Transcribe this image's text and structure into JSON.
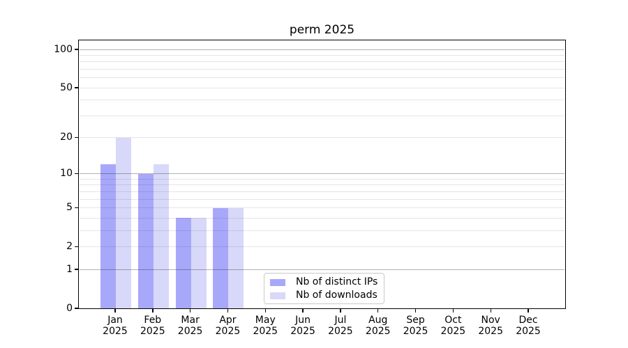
{
  "chart_data": {
    "type": "bar",
    "title": "perm 2025",
    "months": [
      "Jan",
      "Feb",
      "Mar",
      "Apr",
      "May",
      "Jun",
      "Jul",
      "Aug",
      "Sep",
      "Oct",
      "Nov",
      "Dec"
    ],
    "year": "2025",
    "series": [
      {
        "name": "Nb of distinct IPs",
        "color": "#a8a8fa",
        "values": [
          12,
          10,
          4,
          5,
          0,
          0,
          0,
          0,
          0,
          0,
          0,
          0
        ]
      },
      {
        "name": "Nb of downloads",
        "color": "#d8d8fa",
        "values": [
          20,
          12,
          4,
          5,
          0,
          0,
          0,
          0,
          0,
          0,
          0,
          0
        ]
      }
    ],
    "yticks": [
      0,
      1,
      2,
      5,
      10,
      20,
      50,
      100
    ],
    "minor_yticks": [
      3,
      4,
      6,
      7,
      8,
      9,
      30,
      40,
      60,
      70,
      80,
      90
    ],
    "decade_gridlines": [
      1,
      10,
      100
    ],
    "scale": "log1p",
    "ylim": [
      0,
      119
    ],
    "grid": true,
    "legend_position": "lower-center",
    "colors": {
      "grid_decade": "#b3b3b3",
      "grid_minor": "#e6e6e6",
      "axis": "#000000",
      "background": "#ffffff",
      "text": "#000000"
    }
  }
}
